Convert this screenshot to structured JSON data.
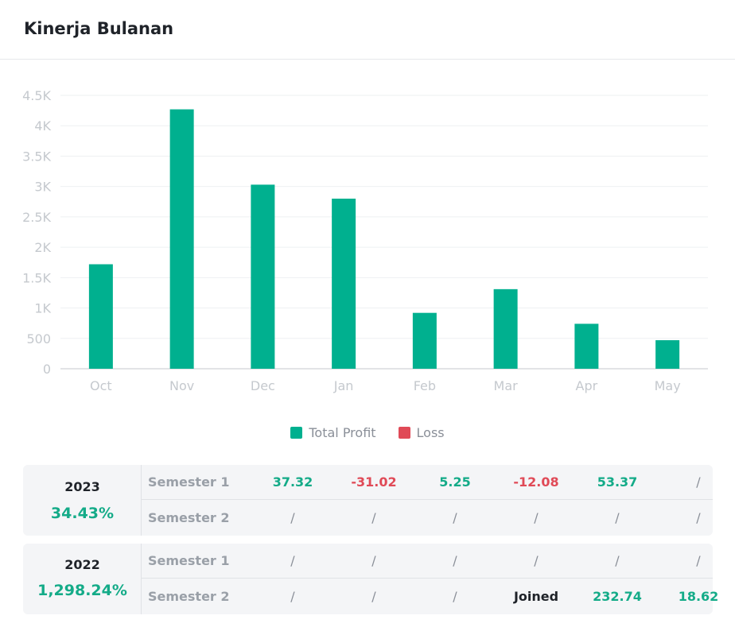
{
  "header": {
    "title": "Kinerja Bulanan"
  },
  "colors": {
    "profit": "#00b08f",
    "loss": "#e04a57",
    "positive_text": "#14ab88",
    "negative_text": "#e04a57"
  },
  "chart_data": {
    "type": "bar",
    "title": "",
    "xlabel": "",
    "ylabel": "",
    "categories": [
      "Oct",
      "Nov",
      "Dec",
      "Jan",
      "Feb",
      "Mar",
      "Apr",
      "May"
    ],
    "series": [
      {
        "name": "Total Profit",
        "values": [
          1720,
          4270,
          3030,
          2800,
          920,
          1310,
          740,
          470
        ]
      },
      {
        "name": "Loss",
        "values": [
          0,
          0,
          0,
          0,
          0,
          0,
          0,
          0
        ]
      }
    ],
    "ylim": [
      0,
      4500
    ],
    "yticks": [
      0,
      500,
      1000,
      1500,
      2000,
      2500,
      3000,
      3500,
      4000,
      4500
    ],
    "ytick_labels": [
      "0",
      "500",
      "1K",
      "1.5K",
      "2K",
      "2.5K",
      "3K",
      "3.5K",
      "4K",
      "4.5K"
    ],
    "grid": true,
    "legend": "bottom-center"
  },
  "legend": [
    {
      "label": "Total Profit",
      "color": "#00b08f"
    },
    {
      "label": "Loss",
      "color": "#e04a57"
    }
  ],
  "yearly": [
    {
      "year": "2023",
      "return": "34.43%",
      "semesters": [
        {
          "label": "Semester 1",
          "values": [
            "37.32",
            "-31.02",
            "5.25",
            "-12.08",
            "53.37",
            "/"
          ]
        },
        {
          "label": "Semester 2",
          "values": [
            "/",
            "/",
            "/",
            "/",
            "/",
            "/"
          ]
        }
      ]
    },
    {
      "year": "2022",
      "return": "1,298.24%",
      "semesters": [
        {
          "label": "Semester 1",
          "values": [
            "/",
            "/",
            "/",
            "/",
            "/",
            "/"
          ]
        },
        {
          "label": "Semester 2",
          "values": [
            "/",
            "/",
            "/",
            "Joined",
            "232.74",
            "18.62"
          ]
        }
      ]
    }
  ]
}
